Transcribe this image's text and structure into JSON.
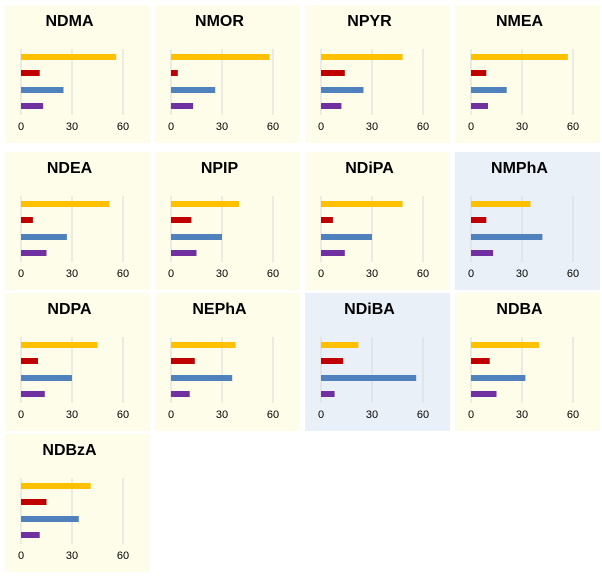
{
  "chart_data": [
    {
      "type": "bar",
      "title": "NDMA",
      "values": [
        56,
        11,
        25,
        13
      ],
      "background": "#fefde9"
    },
    {
      "type": "bar",
      "title": "NMOR",
      "values": [
        58,
        4,
        26,
        13
      ],
      "background": "#fefde9"
    },
    {
      "type": "bar",
      "title": "NPYR",
      "values": [
        48,
        14,
        25,
        12
      ],
      "background": "#fefde9"
    },
    {
      "type": "bar",
      "title": "NMEA",
      "values": [
        57,
        9,
        21,
        10
      ],
      "background": "#fefde9"
    },
    {
      "type": "bar",
      "title": "NDEA",
      "values": [
        52,
        7,
        27,
        15
      ],
      "background": "#fefde9"
    },
    {
      "type": "bar",
      "title": "NPIP",
      "values": [
        40,
        12,
        30,
        15
      ],
      "background": "#fefde9"
    },
    {
      "type": "bar",
      "title": "NDiPA",
      "values": [
        48,
        7,
        30,
        14
      ],
      "background": "#fefde9"
    },
    {
      "type": "bar",
      "title": "NMPhA",
      "values": [
        35,
        9,
        42,
        13
      ],
      "background": "#e9f0f8"
    },
    {
      "type": "bar",
      "title": "NDPA",
      "values": [
        45,
        10,
        30,
        14
      ],
      "background": "#fefde9"
    },
    {
      "type": "bar",
      "title": "NEPhA",
      "values": [
        38,
        14,
        36,
        11
      ],
      "background": "#fefde9"
    },
    {
      "type": "bar",
      "title": "NDiBA",
      "values": [
        22,
        13,
        56,
        8
      ],
      "background": "#e9f0f8"
    },
    {
      "type": "bar",
      "title": "NDBA",
      "values": [
        40,
        11,
        32,
        15
      ],
      "background": "#fefde9"
    },
    {
      "type": "bar",
      "title": "NDBzA",
      "values": [
        41,
        15,
        34,
        11
      ],
      "background": "#fefde9"
    }
  ],
  "colors": [
    "#ffc000",
    "#c00000",
    "#4f81bd",
    "#7030a0"
  ],
  "xlim": [
    0,
    70
  ],
  "xticks": [
    0,
    30,
    60
  ],
  "grid": true,
  "horizontal": true
}
